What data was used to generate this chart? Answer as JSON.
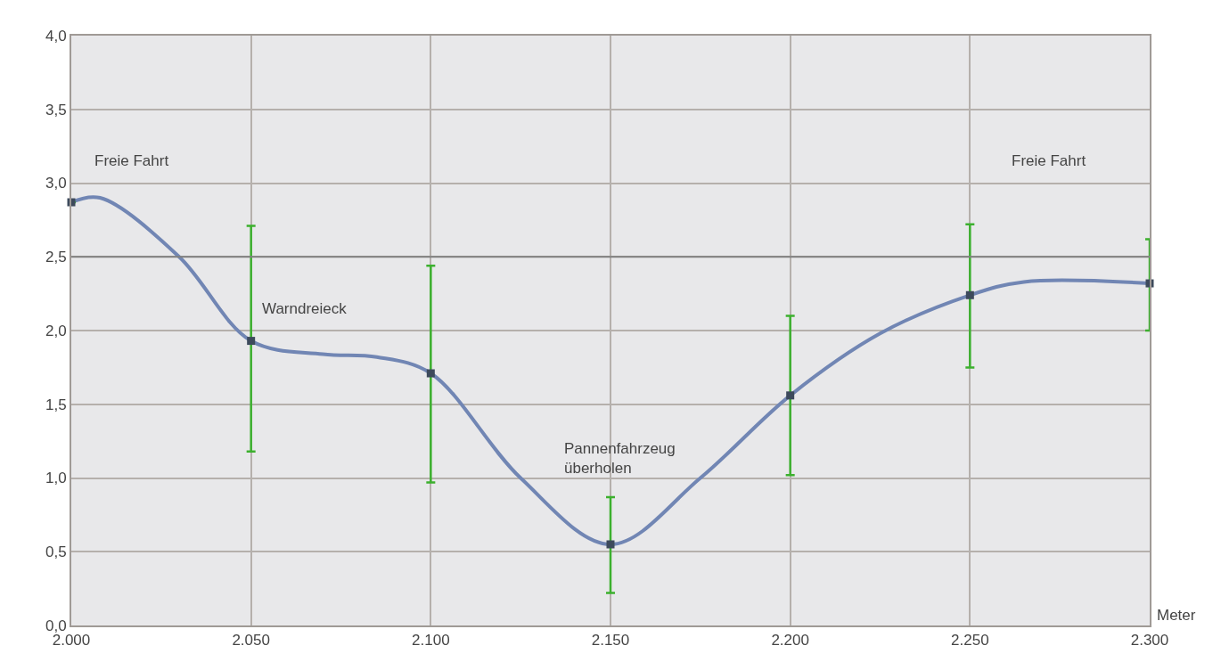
{
  "chart_data": {
    "type": "line",
    "xlabel": "Meter",
    "xlim": [
      2000,
      2300
    ],
    "xticks": [
      {
        "value": 2000,
        "label": "2.000"
      },
      {
        "value": 2050,
        "label": "2.050"
      },
      {
        "value": 2100,
        "label": "2.100"
      },
      {
        "value": 2150,
        "label": "2.150"
      },
      {
        "value": 2200,
        "label": "2.200"
      },
      {
        "value": 2250,
        "label": "2.250"
      },
      {
        "value": 2300,
        "label": "2.300"
      }
    ],
    "ylim": [
      0,
      4
    ],
    "yticks": [
      {
        "value": 0,
        "label": "0,0"
      },
      {
        "value": 0.5,
        "label": "0,5"
      },
      {
        "value": 1,
        "label": "1,0"
      },
      {
        "value": 1.5,
        "label": "1,5"
      },
      {
        "value": 2,
        "label": "2,0"
      },
      {
        "value": 2.5,
        "label": "2,5"
      },
      {
        "value": 3,
        "label": "3,0"
      },
      {
        "value": 3.5,
        "label": "3,5"
      },
      {
        "value": 4,
        "label": "4,0"
      }
    ],
    "grid": true,
    "line_style": "solid",
    "series": [
      {
        "color": "#7186b4",
        "x": [
          2000,
          2008,
          2030,
          2050,
          2070,
          2085,
          2100,
          2125,
          2150,
          2175,
          2200,
          2225,
          2250,
          2265,
          2300
        ],
        "values": [
          2.87,
          2.9,
          2.5,
          1.93,
          1.84,
          1.82,
          1.71,
          1.0,
          0.55,
          1.0,
          1.56,
          1.98,
          2.24,
          2.33,
          2.32
        ]
      },
      {
        "type": "scatter",
        "marker": "square",
        "color": "#3d4a5c",
        "x": [
          2000,
          2050,
          2100,
          2150,
          2200,
          2250,
          2300
        ],
        "values": [
          2.87,
          1.93,
          1.71,
          0.55,
          1.56,
          2.24,
          2.32
        ],
        "errors": [
          null,
          [
            1.18,
            2.71
          ],
          [
            0.97,
            2.44
          ],
          [
            0.22,
            0.87
          ],
          [
            1.02,
            2.1
          ],
          [
            1.75,
            2.72
          ],
          [
            2.0,
            2.62
          ]
        ]
      }
    ],
    "ref_lines": [
      {
        "axis": "y",
        "value": 2.5,
        "color": "#808080"
      }
    ],
    "annotations": [
      "Freie Fahrt",
      "Warndreieck",
      "Pannenfahrzeug\nüberholen",
      "Freie Fahrt"
    ]
  }
}
